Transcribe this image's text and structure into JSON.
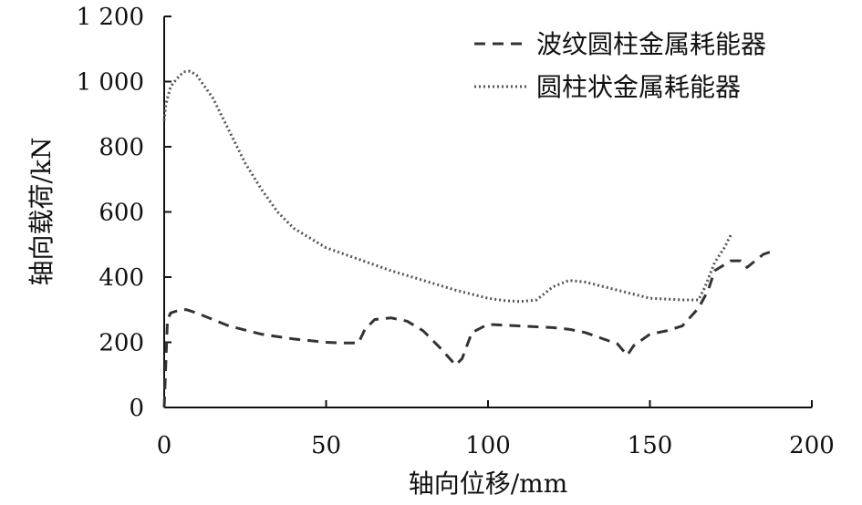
{
  "chart_data": {
    "type": "line",
    "title": "",
    "xlabel": "轴向位移/mm",
    "ylabel": "轴向载荷/kN",
    "xlim": [
      0,
      200
    ],
    "ylim": [
      0,
      1200
    ],
    "x_ticks": [
      {
        "value": 0,
        "label": "0"
      },
      {
        "value": 50,
        "label": "50"
      },
      {
        "value": 100,
        "label": "100"
      },
      {
        "value": 150,
        "label": "150"
      },
      {
        "value": 200,
        "label": "200"
      }
    ],
    "y_ticks": [
      {
        "value": 0,
        "label": "0"
      },
      {
        "value": 200,
        "label": "200"
      },
      {
        "value": 400,
        "label": "400"
      },
      {
        "value": 600,
        "label": "600"
      },
      {
        "value": 800,
        "label": "800"
      },
      {
        "value": 1000,
        "label": "1 000"
      },
      {
        "value": 1200,
        "label": "1 200"
      }
    ],
    "grid": false,
    "legend_position": "top-right",
    "series": [
      {
        "name": "波纹圆柱金属耗能器",
        "style": "dashed",
        "color": "#333333",
        "x": [
          0,
          1,
          2,
          5,
          7,
          10,
          15,
          20,
          30,
          40,
          50,
          55,
          60,
          62,
          65,
          70,
          75,
          80,
          85,
          90,
          92,
          95,
          100,
          110,
          120,
          125,
          130,
          140,
          143,
          145,
          150,
          155,
          160,
          165,
          168,
          170,
          175,
          178,
          180,
          185,
          188
        ],
        "y": [
          0,
          270,
          290,
          300,
          300,
          290,
          270,
          250,
          225,
          210,
          200,
          198,
          198,
          240,
          270,
          275,
          265,
          235,
          185,
          130,
          150,
          230,
          255,
          250,
          245,
          240,
          230,
          195,
          160,
          190,
          225,
          235,
          250,
          305,
          360,
          420,
          450,
          450,
          430,
          470,
          480
        ]
      },
      {
        "name": "圆柱状金属耗能器",
        "style": "dotted",
        "color": "#555555",
        "x": [
          0,
          0.5,
          2,
          4,
          6,
          8,
          10,
          15,
          20,
          25,
          30,
          35,
          40,
          50,
          60,
          70,
          80,
          90,
          100,
          105,
          110,
          115,
          120,
          125,
          130,
          140,
          150,
          160,
          165,
          167,
          170,
          173,
          175
        ],
        "y": [
          880,
          930,
          985,
          1010,
          1030,
          1032,
          1020,
          950,
          850,
          750,
          670,
          600,
          550,
          490,
          455,
          420,
          390,
          360,
          335,
          328,
          325,
          330,
          370,
          390,
          385,
          360,
          335,
          330,
          330,
          370,
          445,
          490,
          530
        ]
      }
    ]
  }
}
